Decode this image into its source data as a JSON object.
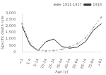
{
  "chart_data": {
    "type": "line",
    "categories": [
      "<1",
      "1-4",
      "5-14",
      "15-24",
      "25-34",
      "35-44",
      "45-54",
      "55-64",
      "65-74",
      "75-84",
      ">85"
    ],
    "series": [
      {
        "name": "1911-1917",
        "color": "#aaaaaa",
        "line_style": "dashed",
        "marker": "point",
        "values": [
          2200,
          650,
          120,
          70,
          100,
          180,
          400,
          650,
          1100,
          1900,
          2700
        ]
      },
      {
        "name": "1918",
        "color": "#333333",
        "line_style": "solid",
        "marker": "none",
        "values": [
          2000,
          550,
          90,
          800,
          1000,
          420,
          280,
          380,
          800,
          1700,
          2200
        ]
      }
    ],
    "x_label": "Age (y)",
    "y_label": "Specific death rate",
    "ylim": [
      0,
      3000
    ],
    "yticks": [
      0,
      500,
      {
        "value": 1000,
        "label": "1,000"
      },
      {
        "value": 1500,
        "label": "1,500"
      },
      {
        "value": 2000,
        "label": "2,000"
      },
      {
        "value": 2500,
        "label": "2,500"
      },
      {
        "value": 3000,
        "label": "3,000"
      }
    ],
    "grid": false,
    "legend": "upper right"
  }
}
